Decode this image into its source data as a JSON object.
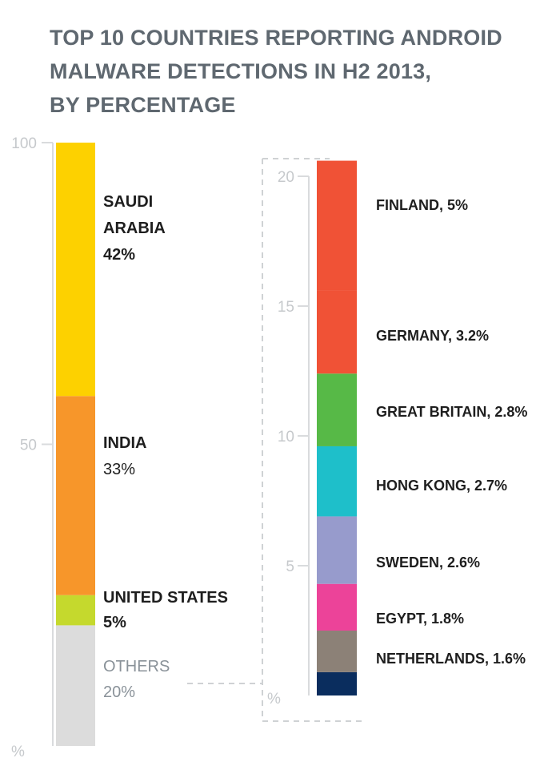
{
  "title_lines": [
    "TOP 10 COUNTRIES REPORTING ANDROID",
    "MALWARE DETECTIONS IN H2 2013,",
    "BY PERCENTAGE"
  ],
  "chart_data": [
    {
      "type": "bar",
      "stacked": true,
      "axis_unit": "%",
      "ylim": [
        0,
        100
      ],
      "yticks": [
        "100",
        "50"
      ],
      "series": [
        {
          "name_lines": [
            "OTHERS"
          ],
          "value_label": "20%",
          "value": 20,
          "color": "#dcdcdc"
        },
        {
          "name_lines": [
            "UNITED STATES"
          ],
          "value_label": "5%",
          "value": 5,
          "color": "#c5d92d"
        },
        {
          "name_lines": [
            "INDIA"
          ],
          "value_label": "33%",
          "value": 33,
          "color": "#f7962a"
        },
        {
          "name_lines": [
            "SAUDI",
            "ARABIA"
          ],
          "value_label": "42%",
          "value": 42,
          "color": "#fdd100"
        }
      ]
    },
    {
      "type": "bar",
      "stacked": true,
      "axis_unit": "%",
      "ylim": [
        0,
        20
      ],
      "yticks": [
        "20",
        "15",
        "10",
        "5"
      ],
      "series": [
        {
          "name": "",
          "value": 0.9,
          "color": "#0a2d5e"
        },
        {
          "name": "NETHERLANDS, 1.6%",
          "value": 1.6,
          "color": "#8c8177"
        },
        {
          "name": "EGYPT, 1.8%",
          "value": 1.8,
          "color": "#ec4399"
        },
        {
          "name": "SWEDEN, 2.6%",
          "value": 2.6,
          "color": "#979bcc"
        },
        {
          "name": "HONG KONG, 2.7%",
          "value": 2.7,
          "color": "#1ebfca"
        },
        {
          "name": "GREAT BRITAIN, 2.8%",
          "value": 2.8,
          "color": "#57b947"
        },
        {
          "name": "GERMANY, 3.2%",
          "value": 3.2,
          "color": "#f05236"
        },
        {
          "name": "FINLAND, 5%",
          "value": 5
        }
      ]
    }
  ]
}
